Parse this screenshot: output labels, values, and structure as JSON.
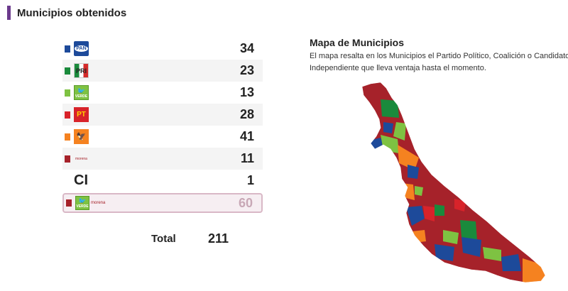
{
  "header": {
    "title": "Municipios obtenidos"
  },
  "rows": [
    {
      "logo_text": "PAN",
      "value": "34",
      "color": "#1d4a9a"
    },
    {
      "logo_text": "PRI",
      "value": "23",
      "color": "#1a8a3c"
    },
    {
      "logo_text": "VERDE",
      "value": "13",
      "color": "#7ec242"
    },
    {
      "logo_text": "PT",
      "value": "28",
      "color": "#d8232a"
    },
    {
      "logo_text": "",
      "value": "41",
      "color": "#f58220"
    },
    {
      "logo_text": "morena",
      "value": "11",
      "color": "#a6222a"
    },
    {
      "logo_text": "CI",
      "value": "1",
      "color": ""
    },
    {
      "logo_text_1": "VERDE",
      "logo_text_2": "morena",
      "value": "60",
      "color": "#a6222a"
    }
  ],
  "total": {
    "label": "Total",
    "value": "211"
  },
  "map": {
    "title": "Mapa de Municipios",
    "description_line1": "El mapa resalta en los Municipios el Partido Político, Coalición o Candidato",
    "description_line2": "Independiente que lleva ventaja hasta el momento."
  },
  "icons": {
    "pan": "pan-logo-icon",
    "pri": "pri-logo-icon",
    "verde": "pvem-logo-icon",
    "pt": "pt-logo-icon",
    "mc": "movimiento-ciudadano-logo-icon",
    "morena": "morena-logo-icon"
  }
}
